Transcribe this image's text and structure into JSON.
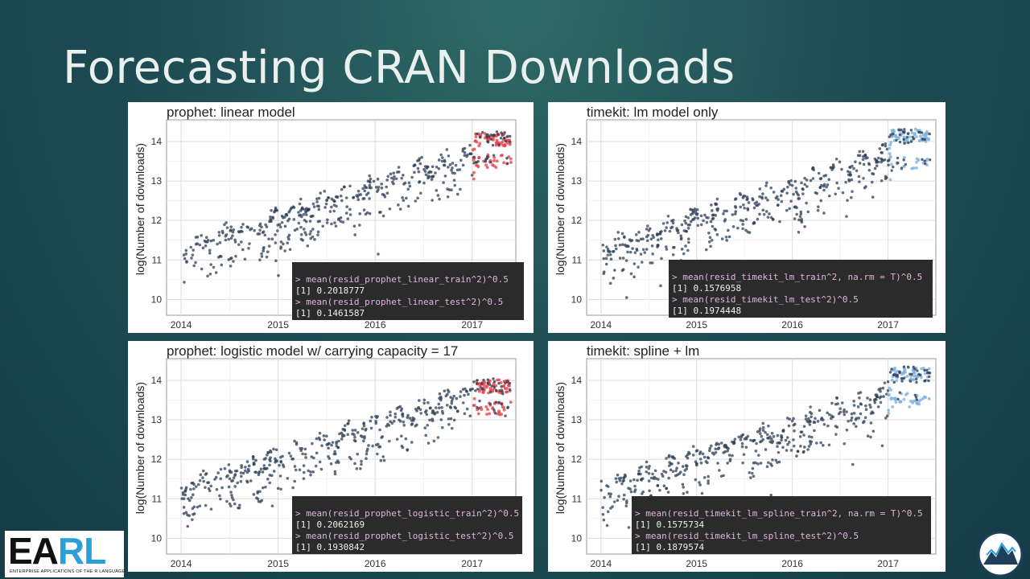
{
  "slide": {
    "title": "Forecasting CRAN Downloads",
    "logo_left": {
      "letters_a": "EA",
      "letters_b": "RL",
      "tagline": "ENTERPRISE APPLICATIONS OF THE R LANGUAGE"
    },
    "logo_right": {
      "icon": "mountain-logo-icon"
    }
  },
  "colors": {
    "train_points": "#2e3f55",
    "prophet_forecast": "#e8454a",
    "timekit_forecast": "#7fb1dc"
  },
  "chart_data": [
    {
      "type": "scatter",
      "title": "prophet: linear model",
      "ylabel": "log(Number of downloads)",
      "xlabel": "",
      "x_ticks": [
        "2014",
        "2015",
        "2016",
        "2017"
      ],
      "y_ticks": [
        "10",
        "11",
        "12",
        "13",
        "14"
      ],
      "xlim": [
        2013.85,
        2017.45
      ],
      "ylim": [
        9.6,
        14.55
      ],
      "grid": true,
      "forecast_start": 2017.0,
      "forecast_bands": [
        13.5,
        14.05
      ],
      "series": [
        {
          "role": "train",
          "x": [
            2014.0,
            2017.4
          ],
          "trend": [
            11.15,
            13.95
          ]
        },
        {
          "role": "forecast",
          "x": [
            2017.0,
            2017.4
          ],
          "color": "prophet"
        }
      ],
      "console": [
        {
          "cmd": "> mean(resid_prophet_linear_train^2)^0.5",
          "out": "[1] 0.2018777"
        },
        {
          "cmd": "> mean(resid_prophet_linear_test^2)^0.5",
          "out": "[1] 0.1461587"
        }
      ]
    },
    {
      "type": "scatter",
      "title": "timekit: lm model only",
      "ylabel": "log(Number of downloads)",
      "xlabel": "",
      "x_ticks": [
        "2014",
        "2015",
        "2016",
        "2017"
      ],
      "y_ticks": [
        "10",
        "11",
        "12",
        "13",
        "14"
      ],
      "xlim": [
        2013.85,
        2017.5
      ],
      "ylim": [
        9.6,
        14.55
      ],
      "grid": true,
      "forecast_start": 2017.0,
      "forecast_bands": [
        13.45,
        14.15
      ],
      "series": [
        {
          "role": "train",
          "x": [
            2014.0,
            2017.45
          ],
          "trend": [
            11.15,
            13.95
          ]
        },
        {
          "role": "forecast",
          "x": [
            2017.0,
            2017.45
          ],
          "color": "timekit"
        }
      ],
      "console": [
        {
          "cmd": "> mean(resid_timekit_lm_train^2, na.rm = T)^0.5",
          "out": "[1] 0.1576958"
        },
        {
          "cmd": "> mean(resid_timekit_lm_test^2)^0.5",
          "out": "[1] 0.1974448"
        }
      ]
    },
    {
      "type": "scatter",
      "title": "prophet: logistic model w/ carrying capacity = 17",
      "ylabel": "log(Number of downloads)",
      "xlabel": "",
      "x_ticks": [
        "2014",
        "2015",
        "2016",
        "2017"
      ],
      "y_ticks": [
        "10",
        "11",
        "12",
        "13",
        "14"
      ],
      "xlim": [
        2013.85,
        2017.45
      ],
      "ylim": [
        9.6,
        14.55
      ],
      "grid": true,
      "forecast_start": 2017.0,
      "forecast_bands": [
        13.3,
        13.85
      ],
      "series": [
        {
          "role": "train",
          "x": [
            2014.0,
            2017.4
          ],
          "trend": [
            11.15,
            13.95
          ]
        },
        {
          "role": "forecast",
          "x": [
            2017.0,
            2017.4
          ],
          "color": "prophet"
        }
      ],
      "console": [
        {
          "cmd": "> mean(resid_prophet_logistic_train^2)^0.5",
          "out": "[1] 0.2062169"
        },
        {
          "cmd": "> mean(resid_prophet_logistic_test^2)^0.5",
          "out": "[1] 0.1930842"
        }
      ]
    },
    {
      "type": "scatter",
      "title": "timekit: spline + lm",
      "ylabel": "log(Number of downloads)",
      "xlabel": "",
      "x_ticks": [
        "2014",
        "2015",
        "2016",
        "2017"
      ],
      "y_ticks": [
        "10",
        "11",
        "12",
        "13",
        "14"
      ],
      "xlim": [
        2013.85,
        2017.5
      ],
      "ylim": [
        9.6,
        14.55
      ],
      "grid": true,
      "forecast_start": 2017.0,
      "forecast_bands": [
        13.5,
        14.15
      ],
      "series": [
        {
          "role": "train",
          "x": [
            2014.0,
            2017.45
          ],
          "trend": [
            11.15,
            13.95
          ]
        },
        {
          "role": "forecast",
          "x": [
            2017.0,
            2017.45
          ],
          "color": "timekit"
        }
      ],
      "console": [
        {
          "cmd": "> mean(resid_timekit_lm_spline_train^2, na.rm = T)^0.5",
          "out": "[1] 0.1575734"
        },
        {
          "cmd": "> mean(resid_timekit_lm_spline_test^2)^0.5",
          "out": "[1] 0.1879574"
        }
      ]
    }
  ]
}
